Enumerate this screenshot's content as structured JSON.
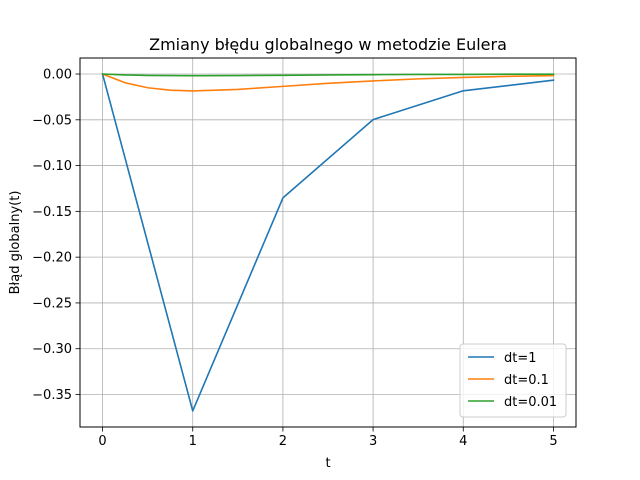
{
  "chart_data": {
    "type": "line",
    "title": "Zmiany błędu globalnego w metodzie Eulera",
    "xlabel": "t",
    "ylabel": "Błąd globalny(t)",
    "xlim": [
      -0.25,
      5.25
    ],
    "ylim": [
      -0.3855,
      0.0175
    ],
    "xticks": [
      0,
      1,
      2,
      3,
      4,
      5
    ],
    "xtick_labels": [
      "0",
      "1",
      "2",
      "3",
      "4",
      "5"
    ],
    "yticks": [
      0.0,
      -0.05,
      -0.1,
      -0.15,
      -0.2,
      -0.25,
      -0.3,
      -0.35
    ],
    "ytick_labels": [
      "0.00",
      "−0.05",
      "−0.10",
      "−0.15",
      "−0.20",
      "−0.25",
      "−0.30",
      "−0.35"
    ],
    "grid": true,
    "legend_position": "bottom-right",
    "series": [
      {
        "name": "dt=1",
        "color": "#1f77b4",
        "x": [
          0,
          1,
          2,
          3,
          4,
          5
        ],
        "y": [
          0.0,
          -0.3679,
          -0.1353,
          -0.0498,
          -0.0183,
          -0.0067
        ]
      },
      {
        "name": "dt=0.1",
        "color": "#ff7f0e",
        "x": [
          0,
          0.25,
          0.5,
          0.75,
          1,
          1.5,
          2,
          2.5,
          3,
          3.5,
          4,
          4.5,
          5
        ],
        "y": [
          0.0,
          -0.0095,
          -0.015,
          -0.0177,
          -0.0185,
          -0.0168,
          -0.0135,
          -0.0102,
          -0.0075,
          -0.0053,
          -0.0037,
          -0.0025,
          -0.0017
        ]
      },
      {
        "name": "dt=0.01",
        "color": "#2ca02c",
        "x": [
          0,
          0.25,
          0.5,
          0.75,
          1,
          1.5,
          2,
          2.5,
          3,
          3.5,
          4,
          4.5,
          5
        ],
        "y": [
          0.0,
          -0.001,
          -0.0015,
          -0.0017,
          -0.0018,
          -0.0017,
          -0.0014,
          -0.001,
          -0.0007,
          -0.0005,
          -0.0004,
          -0.0002,
          -0.0002
        ]
      }
    ]
  }
}
